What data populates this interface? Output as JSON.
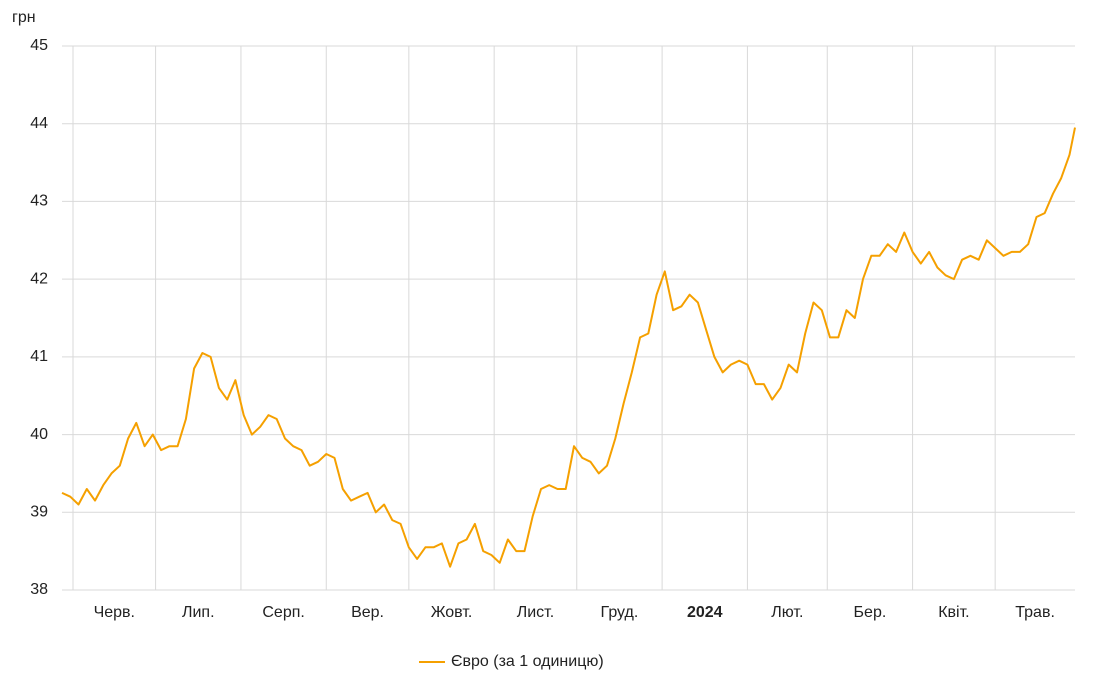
{
  "chart_data": {
    "type": "line",
    "y_axis_label": "грн",
    "xlim": [
      -4,
      364
    ],
    "xgrid": [
      0,
      30,
      61,
      92,
      122,
      153,
      183,
      214,
      245,
      274,
      305,
      335
    ],
    "xticks": [
      {
        "value": 15,
        "label": "Черв."
      },
      {
        "value": 45.5,
        "label": "Лип."
      },
      {
        "value": 76.5,
        "label": "Серп."
      },
      {
        "value": 107,
        "label": "Вер."
      },
      {
        "value": 137.5,
        "label": "Жовт."
      },
      {
        "value": 168,
        "label": "Лист."
      },
      {
        "value": 198.5,
        "label": "Груд."
      },
      {
        "value": 229.5,
        "label": "2024"
      },
      {
        "value": 259.5,
        "label": "Лют."
      },
      {
        "value": 289.5,
        "label": "Бер."
      },
      {
        "value": 320,
        "label": "Квіт."
      },
      {
        "value": 349.5,
        "label": "Трав."
      }
    ],
    "ylim": [
      38,
      45
    ],
    "yticks": [
      38,
      39,
      40,
      41,
      42,
      43,
      44,
      45
    ],
    "grid": true,
    "legend": "bottom",
    "x": [
      -4,
      -1,
      2,
      5,
      8,
      11,
      14,
      17,
      20,
      23,
      26,
      29,
      32,
      35,
      38,
      41,
      44,
      47,
      50,
      53,
      56,
      59,
      62,
      65,
      68,
      71,
      74,
      77,
      80,
      83,
      86,
      89,
      92,
      95,
      98,
      101,
      104,
      107,
      110,
      113,
      116,
      119,
      122,
      125,
      128,
      131,
      134,
      137,
      140,
      143,
      146,
      149,
      152,
      155,
      158,
      161,
      164,
      167,
      170,
      173,
      176,
      179,
      182,
      185,
      188,
      191,
      194,
      197,
      200,
      203,
      206,
      209,
      212,
      215,
      218,
      221,
      224,
      227,
      230,
      233,
      236,
      239,
      242,
      245,
      248,
      251,
      254,
      257,
      260,
      263,
      266,
      269,
      272,
      275,
      278,
      281,
      284,
      287,
      290,
      293,
      296,
      299,
      302,
      305,
      308,
      311,
      314,
      317,
      320,
      323,
      326,
      329,
      332,
      335,
      338,
      341,
      344,
      347,
      350,
      353,
      356,
      359,
      362,
      364
    ],
    "series": [
      {
        "name": "Євро (за 1 одиницю)",
        "color": "#f5a000",
        "values": [
          39.25,
          39.2,
          39.1,
          39.3,
          39.15,
          39.35,
          39.5,
          39.6,
          39.95,
          40.15,
          39.85,
          40.0,
          39.8,
          39.85,
          39.85,
          40.2,
          40.85,
          41.05,
          41.0,
          40.6,
          40.45,
          40.7,
          40.25,
          40.0,
          40.1,
          40.25,
          40.2,
          39.95,
          39.85,
          39.8,
          39.6,
          39.65,
          39.75,
          39.7,
          39.3,
          39.15,
          39.2,
          39.25,
          39.0,
          39.1,
          38.9,
          38.85,
          38.55,
          38.4,
          38.55,
          38.55,
          38.6,
          38.3,
          38.6,
          38.65,
          38.85,
          38.5,
          38.45,
          38.35,
          38.65,
          38.5,
          38.5,
          38.95,
          39.3,
          39.35,
          39.3,
          39.3,
          39.85,
          39.7,
          39.65,
          39.5,
          39.6,
          39.95,
          40.4,
          40.8,
          41.25,
          41.3,
          41.8,
          42.1,
          41.6,
          41.65,
          41.8,
          41.7,
          41.35,
          41.0,
          40.8,
          40.9,
          40.95,
          40.9,
          40.65,
          40.65,
          40.45,
          40.6,
          40.9,
          40.8,
          41.3,
          41.7,
          41.6,
          41.25,
          41.25,
          41.6,
          41.5,
          42.0,
          42.3,
          42.3,
          42.45,
          42.35,
          42.6,
          42.35,
          42.2,
          42.35,
          42.15,
          42.05,
          42.0,
          42.25,
          42.3,
          42.25,
          42.5,
          42.4,
          42.3,
          42.35,
          42.35,
          42.45,
          42.8,
          42.85,
          43.1,
          43.3,
          43.6,
          43.95
        ]
      }
    ]
  }
}
